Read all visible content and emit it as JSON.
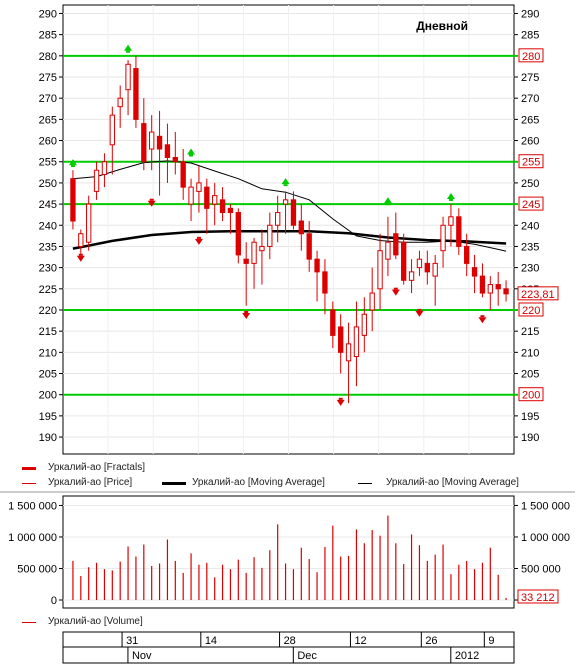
{
  "panel_label": "Дневной",
  "price_panel": {
    "y_ticks": [
      190,
      195,
      200,
      205,
      210,
      215,
      220,
      225,
      230,
      235,
      240,
      245,
      250,
      255,
      260,
      265,
      270,
      275,
      280,
      285,
      290
    ],
    "horizontal_levels": [
      280,
      255,
      245,
      220,
      200
    ],
    "level_color": "#00cc00",
    "last_price_label": "223,81"
  },
  "legend": {
    "fractals": "Уркалий-ао [Fractals]",
    "price": "Уркалий-ао [Price]",
    "ma_thick": "Уркалий-ао [Moving Average]",
    "ma_thin": "Уркалий-ао [Moving Average]",
    "volume": "Уркалий-ао [Volume]"
  },
  "volume_panel": {
    "y_ticks": [
      "0",
      "500 000",
      "1 000 000",
      "1 500 000"
    ],
    "last_volume_label": "33 212"
  },
  "time_axis": {
    "day_labels": [
      "31",
      "14",
      "28",
      "12",
      "26",
      "9"
    ],
    "month_labels": [
      "Nov",
      "Dec",
      "2012"
    ]
  },
  "colors": {
    "candle": "#dd0000",
    "fractal_up": "#00cc00",
    "fractal_down": "#dd0000",
    "ma_thick": "#000000",
    "ma_thin": "#000000",
    "volume": "#dd0000"
  },
  "chart_data": {
    "type": "candlestick",
    "y_range": [
      186,
      292
    ],
    "volume_range": [
      0,
      1650000
    ],
    "candles": [
      {
        "o": 251,
        "h": 253,
        "l": 239,
        "c": 241
      },
      {
        "o": 235,
        "h": 239,
        "l": 233,
        "c": 238
      },
      {
        "o": 236,
        "h": 247,
        "l": 234,
        "c": 245
      },
      {
        "o": 248,
        "h": 255,
        "l": 246,
        "c": 253
      },
      {
        "o": 252,
        "h": 257,
        "l": 249,
        "c": 255
      },
      {
        "o": 259,
        "h": 268,
        "l": 252,
        "c": 266
      },
      {
        "o": 268,
        "h": 273,
        "l": 263,
        "c": 270
      },
      {
        "o": 272,
        "h": 279,
        "l": 266,
        "c": 278
      },
      {
        "o": 277,
        "h": 280,
        "l": 263,
        "c": 265
      },
      {
        "o": 264,
        "h": 270,
        "l": 253,
        "c": 255
      },
      {
        "o": 258,
        "h": 266,
        "l": 253,
        "c": 262
      },
      {
        "o": 261,
        "h": 267,
        "l": 247,
        "c": 258
      },
      {
        "o": 259,
        "h": 264,
        "l": 250,
        "c": 256
      },
      {
        "o": 256,
        "h": 262,
        "l": 252,
        "c": 255
      },
      {
        "o": 255,
        "h": 258,
        "l": 246,
        "c": 249
      },
      {
        "o": 245,
        "h": 251,
        "l": 241,
        "c": 249
      },
      {
        "o": 248,
        "h": 254,
        "l": 243,
        "c": 250
      },
      {
        "o": 249,
        "h": 251,
        "l": 238,
        "c": 244
      },
      {
        "o": 245,
        "h": 250,
        "l": 240,
        "c": 247
      },
      {
        "o": 246,
        "h": 249,
        "l": 241,
        "c": 243
      },
      {
        "o": 244,
        "h": 245,
        "l": 238,
        "c": 243
      },
      {
        "o": 243,
        "h": 244,
        "l": 231,
        "c": 233
      },
      {
        "o": 232,
        "h": 236,
        "l": 221,
        "c": 231
      },
      {
        "o": 231,
        "h": 237,
        "l": 225,
        "c": 236
      },
      {
        "o": 234,
        "h": 239,
        "l": 226,
        "c": 235
      },
      {
        "o": 235,
        "h": 243,
        "l": 232,
        "c": 240
      },
      {
        "o": 240,
        "h": 247,
        "l": 236,
        "c": 243
      },
      {
        "o": 245,
        "h": 248,
        "l": 238,
        "c": 246
      },
      {
        "o": 246,
        "h": 248,
        "l": 239,
        "c": 240
      },
      {
        "o": 241,
        "h": 245,
        "l": 234,
        "c": 238
      },
      {
        "o": 238,
        "h": 241,
        "l": 229,
        "c": 232
      },
      {
        "o": 232,
        "h": 234,
        "l": 222,
        "c": 229
      },
      {
        "o": 229,
        "h": 232,
        "l": 219,
        "c": 224
      },
      {
        "o": 220,
        "h": 222,
        "l": 211,
        "c": 214
      },
      {
        "o": 216,
        "h": 219,
        "l": 205,
        "c": 210
      },
      {
        "o": 208,
        "h": 217,
        "l": 198,
        "c": 212
      },
      {
        "o": 209,
        "h": 222,
        "l": 202,
        "c": 216
      },
      {
        "o": 214,
        "h": 223,
        "l": 210,
        "c": 219
      },
      {
        "o": 220,
        "h": 230,
        "l": 215,
        "c": 224
      },
      {
        "o": 225,
        "h": 238,
        "l": 220,
        "c": 234
      },
      {
        "o": 232,
        "h": 242,
        "l": 228,
        "c": 236
      },
      {
        "o": 238,
        "h": 243,
        "l": 232,
        "c": 233
      },
      {
        "o": 236,
        "h": 238,
        "l": 226,
        "c": 227
      },
      {
        "o": 227,
        "h": 232,
        "l": 224,
        "c": 229
      },
      {
        "o": 230,
        "h": 234,
        "l": 228,
        "c": 232
      },
      {
        "o": 231,
        "h": 234,
        "l": 226,
        "c": 229
      },
      {
        "o": 228,
        "h": 233,
        "l": 221,
        "c": 231
      },
      {
        "o": 234,
        "h": 242,
        "l": 230,
        "c": 240
      },
      {
        "o": 240,
        "h": 245,
        "l": 235,
        "c": 242
      },
      {
        "o": 242,
        "h": 244,
        "l": 233,
        "c": 235
      },
      {
        "o": 235,
        "h": 238,
        "l": 228,
        "c": 231
      },
      {
        "o": 230,
        "h": 233,
        "l": 224,
        "c": 228
      },
      {
        "o": 228,
        "h": 231,
        "l": 223,
        "c": 224
      },
      {
        "o": 224,
        "h": 228,
        "l": 220,
        "c": 226
      },
      {
        "o": 226,
        "h": 229,
        "l": 221,
        "c": 225
      },
      {
        "o": 225,
        "h": 227,
        "l": 222,
        "c": 223.81
      }
    ],
    "volume": [
      620000,
      380000,
      520000,
      590000,
      490000,
      470000,
      610000,
      850000,
      690000,
      880000,
      540000,
      580000,
      960000,
      620000,
      430000,
      740000,
      560000,
      590000,
      360000,
      560000,
      490000,
      640000,
      430000,
      680000,
      510000,
      790000,
      1200000,
      580000,
      490000,
      830000,
      650000,
      440000,
      840000,
      1180000,
      690000,
      700000,
      1120000,
      900000,
      1110000,
      1020000,
      1340000,
      900000,
      570000,
      1040000,
      870000,
      620000,
      720000,
      880000,
      410000,
      560000,
      620000,
      490000,
      590000,
      830000,
      400000,
      33212
    ],
    "ma_thick": [
      [
        0,
        234.5
      ],
      [
        2,
        235.2
      ],
      [
        5,
        236.3
      ],
      [
        10,
        237.7
      ],
      [
        15,
        238.4
      ],
      [
        20,
        238.6
      ],
      [
        25,
        238.6
      ],
      [
        30,
        238.6
      ],
      [
        35,
        238.1
      ],
      [
        40,
        237.1
      ],
      [
        45,
        236.5
      ],
      [
        50,
        236.2
      ],
      [
        55,
        235.7
      ]
    ],
    "ma_thin": [
      [
        0,
        251.0
      ],
      [
        3,
        251.5
      ],
      [
        6,
        253.2
      ],
      [
        9,
        254.8
      ],
      [
        12,
        255.2
      ],
      [
        15,
        254.7
      ],
      [
        18,
        252.8
      ],
      [
        21,
        251.0
      ],
      [
        24,
        248.6
      ],
      [
        27,
        247.8
      ],
      [
        30,
        246.0
      ],
      [
        33,
        241.5
      ],
      [
        36,
        237.5
      ],
      [
        39,
        236.4
      ],
      [
        42,
        236.0
      ],
      [
        45,
        236.0
      ],
      [
        48,
        236.3
      ],
      [
        51,
        235.5
      ],
      [
        54,
        234.3
      ],
      [
        55,
        233.9
      ]
    ],
    "fractals_up": [
      [
        0,
        253.5
      ],
      [
        7,
        280.5
      ],
      [
        15,
        256
      ],
      [
        27,
        249
      ],
      [
        40,
        244.5
      ],
      [
        48,
        245.5
      ]
    ],
    "fractals_down": [
      [
        1,
        233.5
      ],
      [
        10,
        246.5
      ],
      [
        16,
        237.5
      ],
      [
        22,
        220
      ],
      [
        34,
        199.5
      ],
      [
        41,
        225.5
      ],
      [
        44,
        220.5
      ],
      [
        52,
        219
      ]
    ]
  }
}
